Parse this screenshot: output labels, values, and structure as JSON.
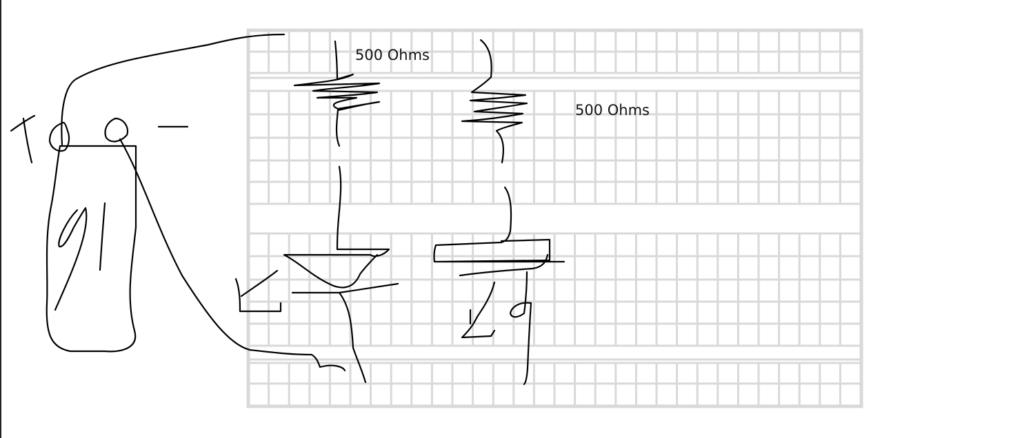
{
  "labels": {
    "resistor_1": "500 Ohms",
    "resistor_2": "500 Ohms"
  },
  "colors": {
    "grid": "#d9d9d9",
    "ink": "#000000",
    "background": "#ffffff"
  }
}
